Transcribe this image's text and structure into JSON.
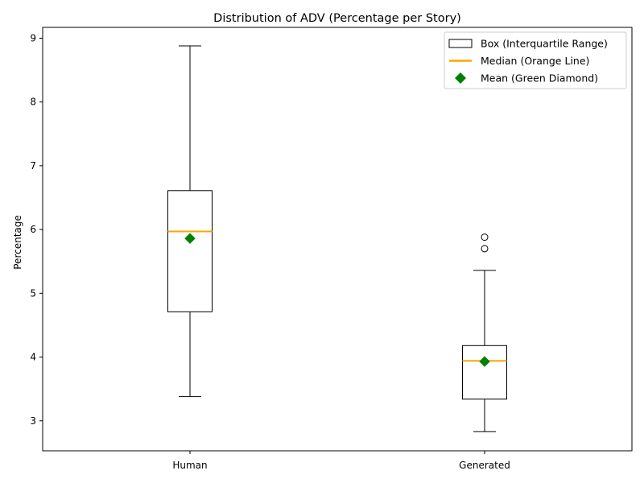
{
  "chart_data": {
    "type": "box",
    "title": "Distribution of ADV (Percentage per Story)",
    "xlabel": "",
    "ylabel": "Percentage",
    "ylim": [
      2.53,
      9.17
    ],
    "yticks": [
      3,
      4,
      5,
      6,
      7,
      8,
      9
    ],
    "grid": false,
    "legend_position": "top-right",
    "categories": [
      "Human",
      "Generated"
    ],
    "boxes": [
      {
        "category": "Human",
        "whisker_low": 3.38,
        "q1": 4.71,
        "median": 5.97,
        "q3": 6.61,
        "whisker_high": 8.88,
        "mean": 5.86,
        "outliers": []
      },
      {
        "category": "Generated",
        "whisker_low": 2.83,
        "q1": 3.34,
        "median": 3.94,
        "q3": 4.18,
        "whisker_high": 5.36,
        "mean": 3.93,
        "outliers": [
          5.7,
          5.88
        ]
      }
    ],
    "legend": [
      {
        "key": "box",
        "label": "Box (Interquartile Range)"
      },
      {
        "key": "median",
        "label": "Median (Orange Line)"
      },
      {
        "key": "mean",
        "label": "Mean (Green Diamond)"
      }
    ],
    "colors": {
      "median": "#ffa500",
      "mean": "#008000",
      "box": "#000000"
    }
  }
}
